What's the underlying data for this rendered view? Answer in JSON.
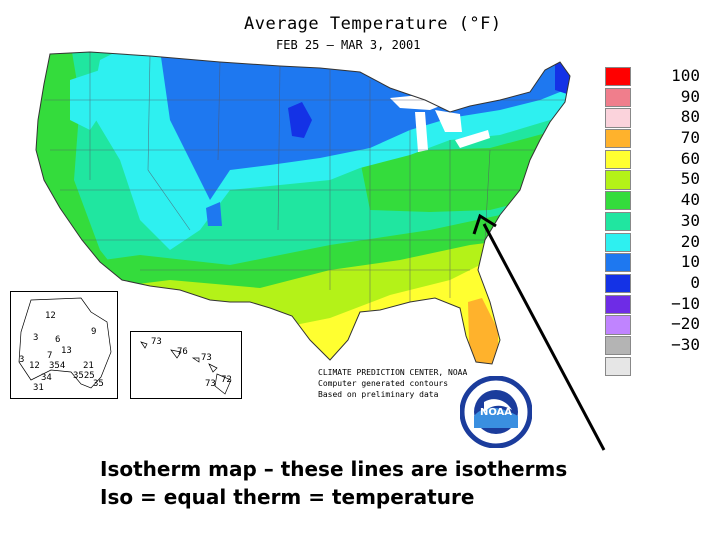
{
  "title": "Average Temperature (°F)",
  "subtitle": "FEB 25 – MAR  3, 2001",
  "legend": [
    {
      "label": "100",
      "color": "#ff0000"
    },
    {
      "label": "90",
      "color": "#f07e8c"
    },
    {
      "label": "80",
      "color": "#fbd3dc"
    },
    {
      "label": "70",
      "color": "#ffb22c"
    },
    {
      "label": "60",
      "color": "#ffff30"
    },
    {
      "label": "50",
      "color": "#b4f218"
    },
    {
      "label": "40",
      "color": "#34dc3c"
    },
    {
      "label": "30",
      "color": "#20e6a0"
    },
    {
      "label": "20",
      "color": "#2ef0f0"
    },
    {
      "label": "10",
      "color": "#1e78f0"
    },
    {
      "label": "0",
      "color": "#1432e6"
    },
    {
      "label": "−10",
      "color": "#6e2ce6"
    },
    {
      "label": "−20",
      "color": "#c084ff"
    },
    {
      "label": "−30",
      "color": "#b4b4b4"
    },
    {
      "label": "",
      "color": "#e6e6e6"
    }
  ],
  "credits": {
    "line1": "CLIMATE PREDICTION CENTER, NOAA",
    "line2": "Computer generated contours",
    "line3": "Based on preliminary data"
  },
  "logo": {
    "text": "NOAA"
  },
  "alaska_labels": [
    "12",
    "9",
    "3",
    "6",
    "13",
    "7",
    "12",
    "354",
    "21",
    "34",
    "3525",
    "35",
    "31",
    "3"
  ],
  "hawaii_labels": [
    "73",
    "76",
    "73",
    "72",
    "73"
  ],
  "caption": {
    "line1": "Isotherm map – these lines are isotherms",
    "line2": "Iso = equal   therm = temperature"
  }
}
